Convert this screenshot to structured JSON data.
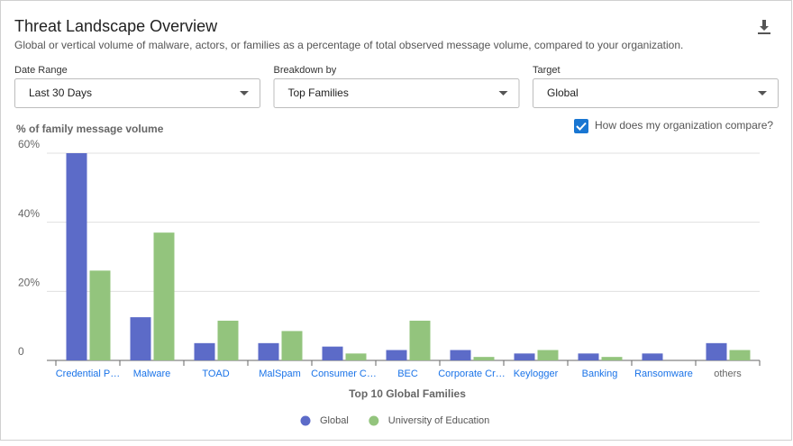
{
  "header": {
    "title": "Threat Landscape Overview",
    "subtitle": "Global or vertical volume of malware, actors, or families as a percentage of total observed message volume, compared to your organization."
  },
  "controls": [
    {
      "label": "Date Range",
      "value": "Last 30 Days"
    },
    {
      "label": "Breakdown by",
      "value": "Top Families"
    },
    {
      "label": "Target",
      "value": "Global"
    }
  ],
  "compare_checkbox": "How does my organization compare?",
  "chart_data": {
    "type": "bar",
    "y_label": "% of family message volume",
    "x_label": "Top 10 Global Families",
    "categories": [
      "Credential P…",
      "Malware",
      "TOAD",
      "MalSpam",
      "Consumer C…",
      "BEC",
      "Corporate Cr…",
      "Keylogger",
      "Banking",
      "Ransomware",
      "others"
    ],
    "series": [
      {
        "name": "Global",
        "color": "#5c6bc8",
        "values": [
          60,
          12.5,
          5,
          5,
          4,
          3,
          3,
          2,
          2,
          2,
          5
        ]
      },
      {
        "name": "University of Education",
        "color": "#93c47d",
        "values": [
          26,
          37,
          11.5,
          8.5,
          2,
          11.5,
          1,
          3,
          1,
          0,
          3
        ]
      }
    ],
    "ylim": [
      0,
      60
    ],
    "yticks": [
      0,
      {
        "value": 20,
        "label": "20%"
      },
      {
        "value": 40,
        "label": "40%"
      },
      {
        "value": 60,
        "label": "60%"
      }
    ],
    "grid": true
  }
}
